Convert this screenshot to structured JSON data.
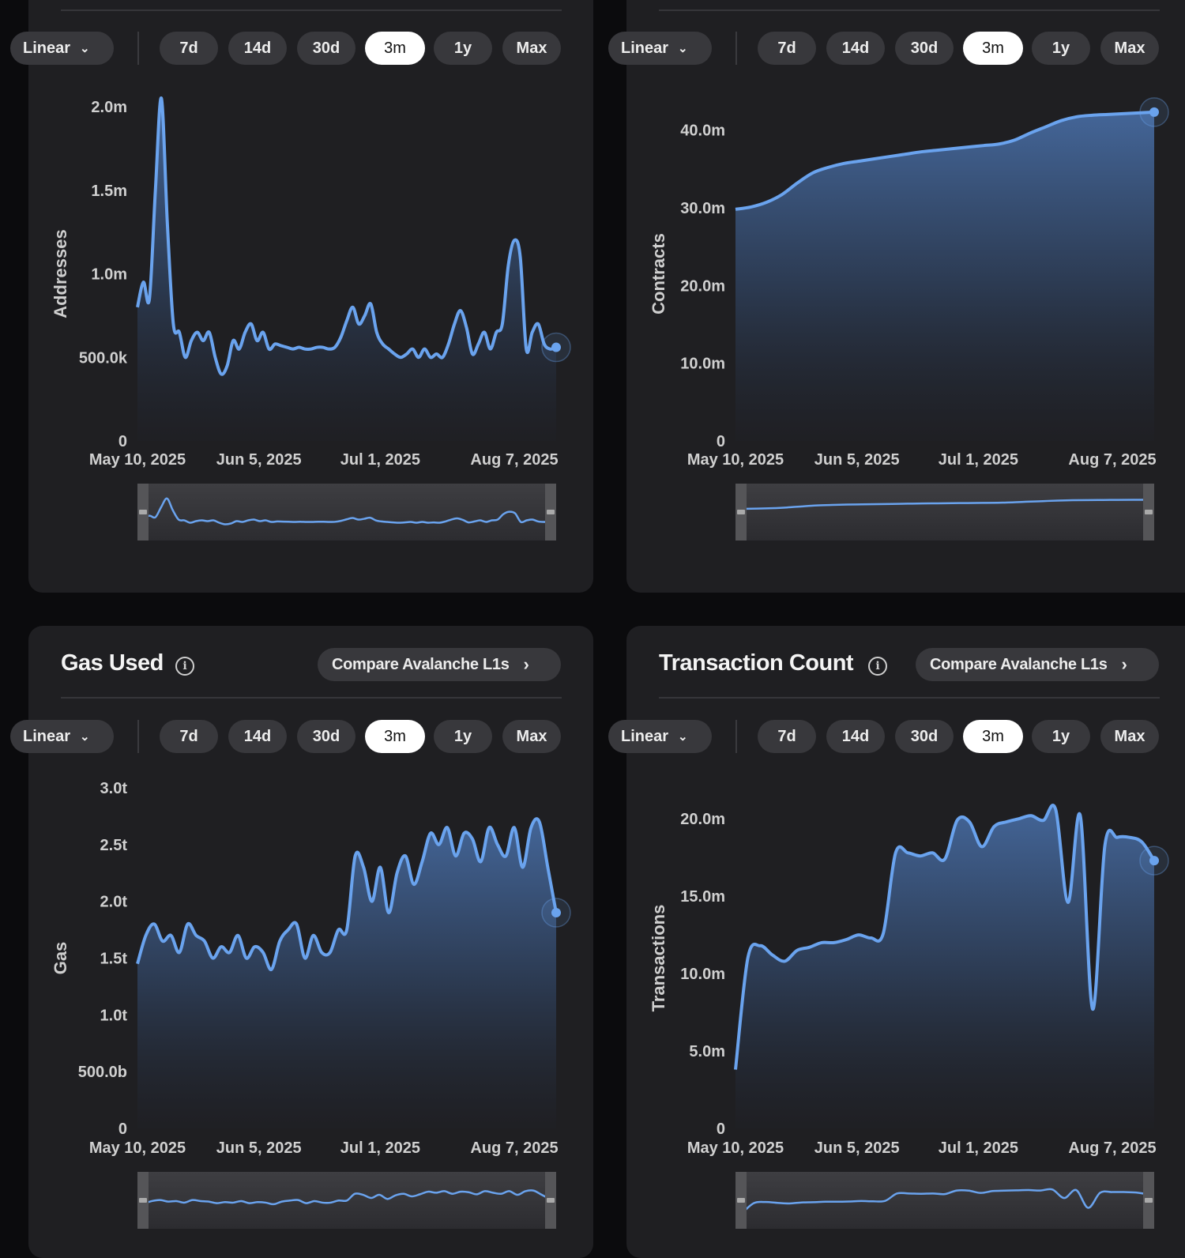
{
  "ui": {
    "scale_label": "Linear",
    "ranges": [
      "7d",
      "14d",
      "30d",
      "3m",
      "1y",
      "Max"
    ],
    "active_range": "3m",
    "compare_label": "Compare Avalanche L1s",
    "accent": "#6aa3ee"
  },
  "panels": [
    {
      "title": "",
      "show_header": false,
      "chart_data": {
        "type": "area",
        "ylabel": "Addresses",
        "xlabel": "",
        "ylim": [
          0,
          2000000
        ],
        "y_ticks": [
          "0",
          "500.0k",
          "1.0m",
          "1.5m",
          "2.0m"
        ],
        "x_ticks": [
          "May 10, 2025",
          "Jun 5, 2025",
          "Jul 1, 2025",
          "Aug 7, 2025"
        ],
        "x_range": [
          "2025-05-10",
          "2025-08-07"
        ],
        "series": [
          {
            "values": [
              800000,
              950000,
              850000,
              1500000,
              2050000,
              1300000,
              700000,
              650000,
              500000,
              600000,
              650000,
              600000,
              650000,
              500000,
              400000,
              450000,
              600000,
              550000,
              650000,
              700000,
              600000,
              650000,
              550000,
              580000,
              570000,
              560000,
              550000,
              560000,
              550000,
              550000,
              560000,
              560000,
              550000,
              560000,
              620000,
              720000,
              800000,
              700000,
              750000,
              820000,
              650000,
              580000,
              550000,
              520000,
              500000,
              520000,
              550000,
              500000,
              550000,
              500000,
              520000,
              500000,
              580000,
              700000,
              780000,
              680000,
              520000,
              580000,
              650000,
              550000,
              650000,
              700000,
              1050000,
              1200000,
              1100000,
              550000,
              650000,
              700000,
              580000,
              550000,
              560000
            ]
          }
        ]
      }
    },
    {
      "title": "",
      "show_header": false,
      "chart_data": {
        "type": "area",
        "ylabel": "Contracts",
        "xlabel": "",
        "ylim": [
          0,
          43000000
        ],
        "y_ticks": [
          "0",
          "10.0m",
          "20.0m",
          "30.0m",
          "40.0m"
        ],
        "x_ticks": [
          "May 10, 2025",
          "Jun 5, 2025",
          "Jul 1, 2025",
          "Aug 7, 2025"
        ],
        "x_range": [
          "2025-05-10",
          "2025-08-07"
        ],
        "series": [
          {
            "values": [
              29800000,
              30100000,
              30700000,
              31700000,
              33200000,
              34500000,
              35200000,
              35700000,
              36000000,
              36300000,
              36600000,
              36900000,
              37200000,
              37400000,
              37600000,
              37800000,
              38000000,
              38200000,
              38700000,
              39600000,
              40400000,
              41200000,
              41700000,
              41900000,
              42000000,
              42100000,
              42200000,
              42300000
            ]
          }
        ]
      }
    },
    {
      "title": "Gas Used",
      "show_header": true,
      "chart_data": {
        "type": "area",
        "ylabel": "Gas",
        "xlabel": "",
        "ylim": [
          0,
          3000000000000
        ],
        "y_ticks": [
          "0",
          "500.0b",
          "1.0t",
          "1.5t",
          "2.0t",
          "2.5t",
          "3.0t"
        ],
        "x_ticks": [
          "May 10, 2025",
          "Jun 5, 2025",
          "Jul 1, 2025",
          "Aug 7, 2025"
        ],
        "x_range": [
          "2025-05-10",
          "2025-08-07"
        ],
        "series": [
          {
            "values": [
              1450000000000,
              1700000000000,
              1800000000000,
              1650000000000,
              1700000000000,
              1550000000000,
              1800000000000,
              1700000000000,
              1650000000000,
              1500000000000,
              1600000000000,
              1550000000000,
              1700000000000,
              1500000000000,
              1600000000000,
              1550000000000,
              1400000000000,
              1650000000000,
              1750000000000,
              1800000000000,
              1500000000000,
              1700000000000,
              1550000000000,
              1550000000000,
              1750000000000,
              1750000000000,
              2400000000000,
              2300000000000,
              2000000000000,
              2300000000000,
              1900000000000,
              2250000000000,
              2400000000000,
              2150000000000,
              2350000000000,
              2600000000000,
              2500000000000,
              2650000000000,
              2400000000000,
              2600000000000,
              2550000000000,
              2350000000000,
              2650000000000,
              2500000000000,
              2400000000000,
              2650000000000,
              2300000000000,
              2650000000000,
              2700000000000,
              2300000000000,
              1900000000000
            ]
          }
        ]
      }
    },
    {
      "title": "Transaction Count",
      "show_header": true,
      "chart_data": {
        "type": "area",
        "ylabel": "Transactions",
        "xlabel": "",
        "ylim": [
          0,
          22000000
        ],
        "y_ticks": [
          "0",
          "5.0m",
          "10.0m",
          "15.0m",
          "20.0m"
        ],
        "x_ticks": [
          "May 10, 2025",
          "Jun 5, 2025",
          "Jul 1, 2025",
          "Aug 7, 2025"
        ],
        "x_range": [
          "2025-05-10",
          "2025-08-07"
        ],
        "series": [
          {
            "values": [
              3800000,
              11000000,
              11800000,
              11200000,
              10800000,
              11500000,
              11700000,
              12000000,
              12000000,
              12200000,
              12500000,
              12300000,
              12600000,
              17800000,
              17800000,
              17600000,
              17800000,
              17400000,
              19900000,
              19800000,
              18200000,
              19500000,
              19800000,
              20000000,
              20200000,
              19900000,
              20600000,
              14600000,
              20200000,
              7700000,
              18300000,
              18800000,
              18800000,
              18500000,
              17300000
            ]
          }
        ]
      }
    }
  ]
}
